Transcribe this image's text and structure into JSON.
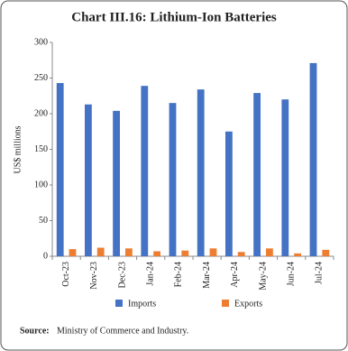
{
  "chart_data": {
    "type": "bar",
    "title": "Chart III.16: Lithium-Ion Batteries",
    "y_label": "US$ millions",
    "categories": [
      "Oct-23",
      "Nov-23",
      "Dec-23",
      "Jan-24",
      "Feb-24",
      "Mar-24",
      "Apr-24",
      "May-24",
      "Jun-24",
      "Jul-24"
    ],
    "series": [
      {
        "name": "Imports",
        "color": "#4472c4",
        "values": [
          243,
          213,
          204,
          239,
          215,
          234,
          175,
          229,
          220,
          271
        ]
      },
      {
        "name": "Exports",
        "color": "#ed7d31",
        "values": [
          10,
          12,
          11,
          7,
          8,
          11,
          6,
          11,
          4,
          9
        ]
      }
    ],
    "ylim": [
      0,
      300
    ],
    "yticks": [
      0,
      50,
      100,
      150,
      200,
      250,
      300
    ],
    "grid": false
  },
  "source": {
    "label": "Source:",
    "text": "Ministry of Commerce and Industry."
  }
}
